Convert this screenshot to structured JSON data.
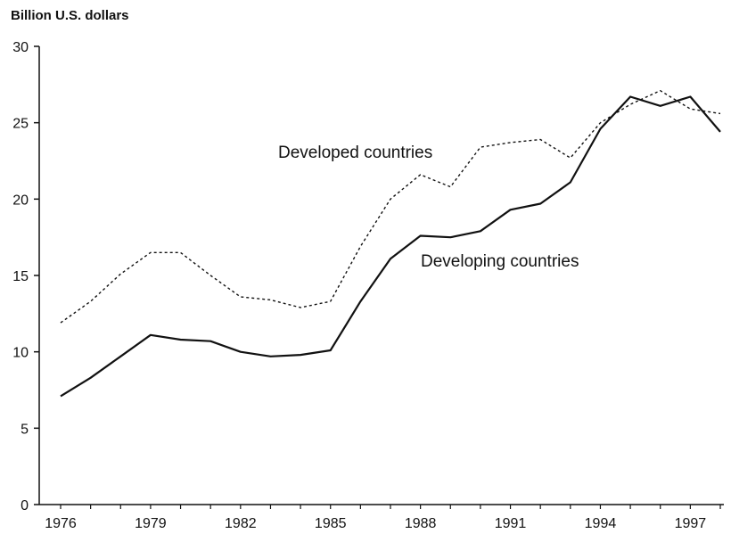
{
  "chart_data": {
    "type": "line",
    "title": "",
    "ylabel": "Billion U.S. dollars",
    "xlabel": "",
    "x": [
      1976,
      1977,
      1978,
      1979,
      1980,
      1981,
      1982,
      1983,
      1984,
      1985,
      1986,
      1987,
      1988,
      1989,
      1990,
      1991,
      1992,
      1993,
      1994,
      1995,
      1996,
      1997,
      1998
    ],
    "x_ticks": [
      "1976",
      "1979",
      "1982",
      "1985",
      "1988",
      "1991",
      "1994",
      "1997"
    ],
    "y_ticks": [
      "0",
      "5",
      "10",
      "15",
      "20",
      "25",
      "30"
    ],
    "ylim": [
      0,
      30
    ],
    "xlim": [
      1976,
      1998
    ],
    "grid": false,
    "series": [
      {
        "name": "Developed countries",
        "style": "dashed",
        "color": "#111111",
        "values": [
          11.9,
          13.3,
          15.1,
          16.5,
          16.5,
          15.0,
          13.6,
          13.4,
          12.9,
          13.3,
          16.9,
          20.0,
          21.6,
          20.8,
          23.4,
          23.7,
          23.9,
          22.7,
          25.0,
          26.2,
          27.1,
          25.9,
          25.6
        ]
      },
      {
        "name": "Developing countries",
        "style": "solid",
        "color": "#111111",
        "values": [
          7.1,
          8.3,
          9.7,
          11.1,
          10.8,
          10.7,
          10.0,
          9.7,
          9.8,
          10.1,
          13.3,
          16.1,
          17.6,
          17.5,
          17.9,
          19.3,
          19.7,
          21.1,
          24.6,
          26.7,
          26.1,
          26.7,
          24.4
        ]
      }
    ]
  }
}
